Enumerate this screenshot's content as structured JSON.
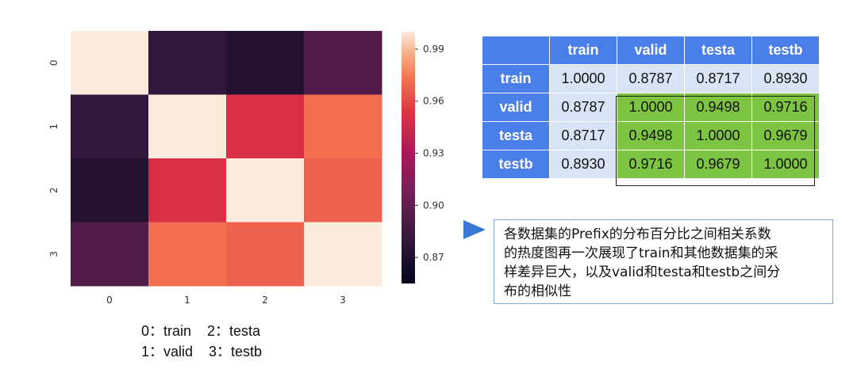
{
  "chart_data": {
    "type": "heatmap",
    "x_ticks": [
      "0",
      "1",
      "2",
      "3"
    ],
    "y_ticks": [
      "0",
      "1",
      "2",
      "3"
    ],
    "values": [
      [
        1.0,
        0.8787,
        0.8717,
        0.893
      ],
      [
        0.8787,
        1.0,
        0.9498,
        0.9716
      ],
      [
        0.8717,
        0.9498,
        1.0,
        0.9679
      ],
      [
        0.893,
        0.9716,
        0.9679,
        1.0
      ]
    ],
    "vmin": 0.8717,
    "vmax": 1.0,
    "colormap": "rocket",
    "colorbar_ticks": [
      0.87,
      0.9,
      0.93,
      0.96,
      0.99
    ],
    "colorbar_tick_labels": [
      "0.87",
      "0.90",
      "0.93",
      "0.96",
      "0.99"
    ]
  },
  "index_legend": {
    "line1": "0：train    2：testa",
    "line2": "1：valid    3：testb"
  },
  "table": {
    "corner": "",
    "columns": [
      "train",
      "valid",
      "testa",
      "testb"
    ],
    "rows": [
      {
        "label": "train",
        "values": [
          "1.0000",
          "0.8787",
          "0.8717",
          "0.8930"
        ]
      },
      {
        "label": "valid",
        "values": [
          "0.8787",
          "1.0000",
          "0.9498",
          "0.9716"
        ]
      },
      {
        "label": "testa",
        "values": [
          "0.8717",
          "0.9498",
          "1.0000",
          "0.9679"
        ]
      },
      {
        "label": "testb",
        "values": [
          "0.8930",
          "0.9716",
          "0.9679",
          "1.0000"
        ]
      }
    ],
    "header_color": "#4a7ee8",
    "cell_color": "#d9e3f6",
    "highlight_color": "#7cc441"
  },
  "note": {
    "lines": [
      "各数据集的Prefix的分布百分比之间相关系数",
      "的热度图再一次展现了train和其他数据集的采",
      "样差异巨大，以及valid和testa和testb之间分",
      "布的相似性"
    ],
    "arrow_icon": "triangle-right-icon",
    "arrow_color": "#3a78d8"
  }
}
